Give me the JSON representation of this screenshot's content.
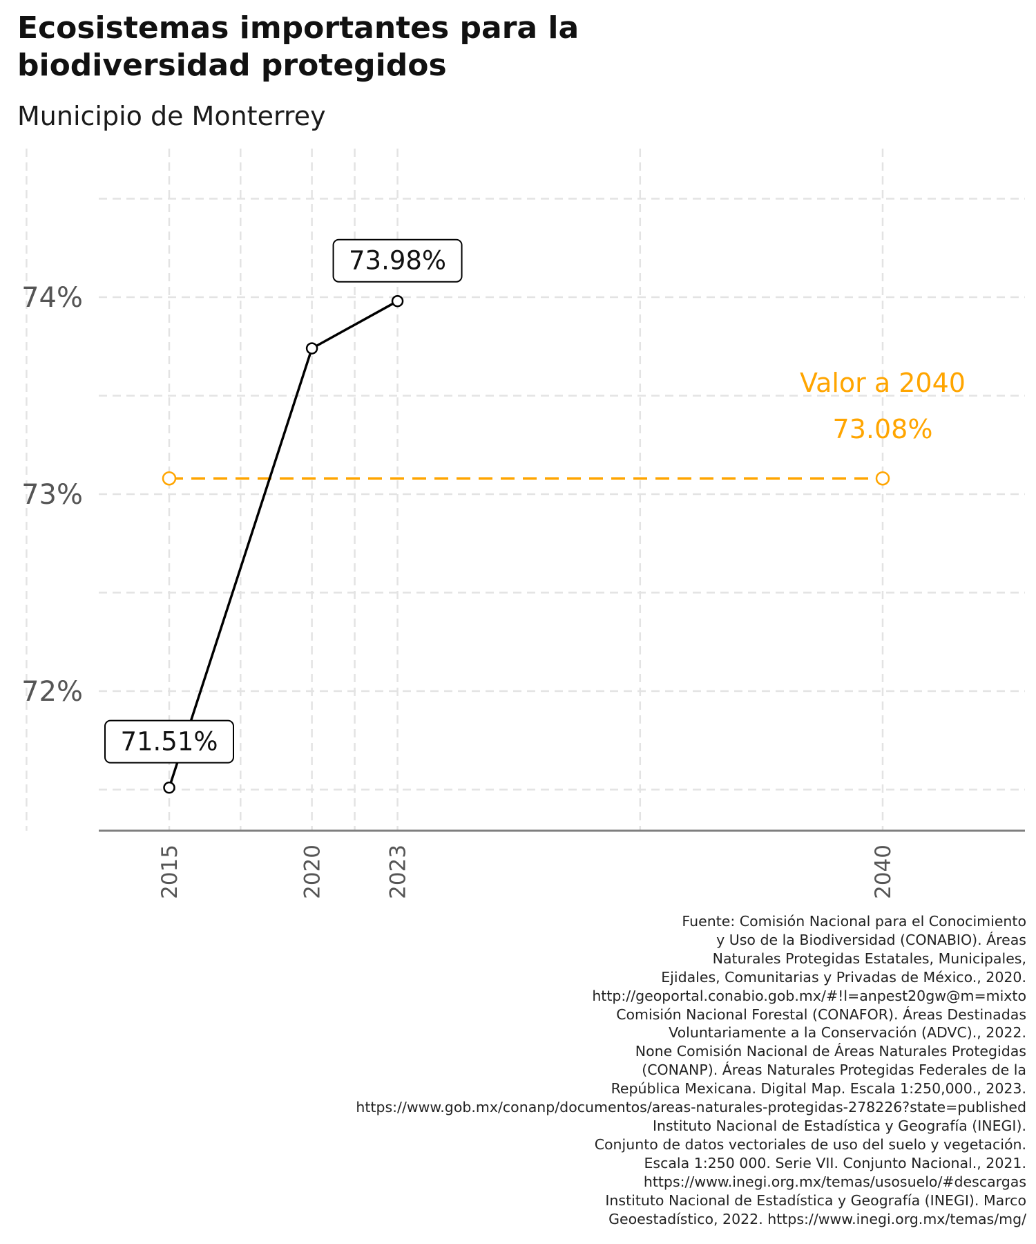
{
  "header": {
    "title": "Ecosistemas importantes para la biodiversidad protegidos",
    "subtitle": "Municipio de Monterrey"
  },
  "colors": {
    "series": "#000000",
    "target": "#FFA500",
    "grid": "#e3e3e3",
    "axis": "#7f7f7f",
    "tick_text": "#555555"
  },
  "chart_data": {
    "type": "line",
    "title": "Ecosistemas importantes para la biodiversidad protegidos",
    "subtitle": "Municipio de Monterrey",
    "xlabel": "",
    "ylabel": "",
    "x_ticks": [
      "2015",
      "2020",
      "2023",
      "2040"
    ],
    "y_ticks": [
      "72%",
      "73%",
      "74%"
    ],
    "y_tick_values": [
      72,
      73,
      74
    ],
    "xlim": [
      2015,
      2040
    ],
    "ylim": [
      71.5,
      74.5
    ],
    "grid": true,
    "grid_style": "dashed",
    "series": [
      {
        "x": [
          2015,
          2020,
          2023
        ],
        "y": [
          71.51,
          73.74,
          73.98
        ],
        "style": "solid",
        "color": "#000000"
      },
      {
        "x": [
          2015,
          2040
        ],
        "y": [
          73.08,
          73.08
        ],
        "style": "dashed",
        "color": "#FFA500"
      }
    ],
    "data_labels": [
      {
        "x": 2015,
        "y": 71.51,
        "text": "71.51%"
      },
      {
        "x": 2023,
        "y": 73.98,
        "text": "73.98%"
      }
    ],
    "annotation": {
      "x": 2040,
      "y": 73.08,
      "line1": "Valor a 2040",
      "line2": "73.08%"
    }
  },
  "caption": {
    "lines": [
      "Fuente: Comisión Nacional para el Conocimiento",
      "y Uso de la Biodiversidad (CONABIO). Áreas",
      "Naturales Protegidas Estatales, Municipales,",
      "Ejidales, Comunitarias y Privadas de México., 2020.",
      "http://geoportal.conabio.gob.mx/#!l=anpest20gw@m=mixto",
      "Comisión Nacional Forestal (CONAFOR). Áreas Destinadas",
      "Voluntariamente a la Conservación (ADVC)., 2022.",
      "None Comisión Nacional de Áreas Naturales Protegidas",
      "(CONANP). Áreas Naturales Protegidas Federales de la",
      "República Mexicana. Digital Map. Escala 1:250,000., 2023.",
      "https://www.gob.mx/conanp/documentos/areas-naturales-protegidas-278226?state=published",
      "Instituto Nacional de Estadística y Geografía (INEGI).",
      "Conjunto de datos vectoriales de uso del suelo y vegetación.",
      "Escala 1:250 000. Serie VII. Conjunto Nacional., 2021.",
      "https://www.inegi.org.mx/temas/usosuelo/#descargas",
      "Instituto Nacional de Estadística y Geografía (INEGI). Marco",
      "Geoestadístico, 2022. https://www.inegi.org.mx/temas/mg/"
    ]
  }
}
